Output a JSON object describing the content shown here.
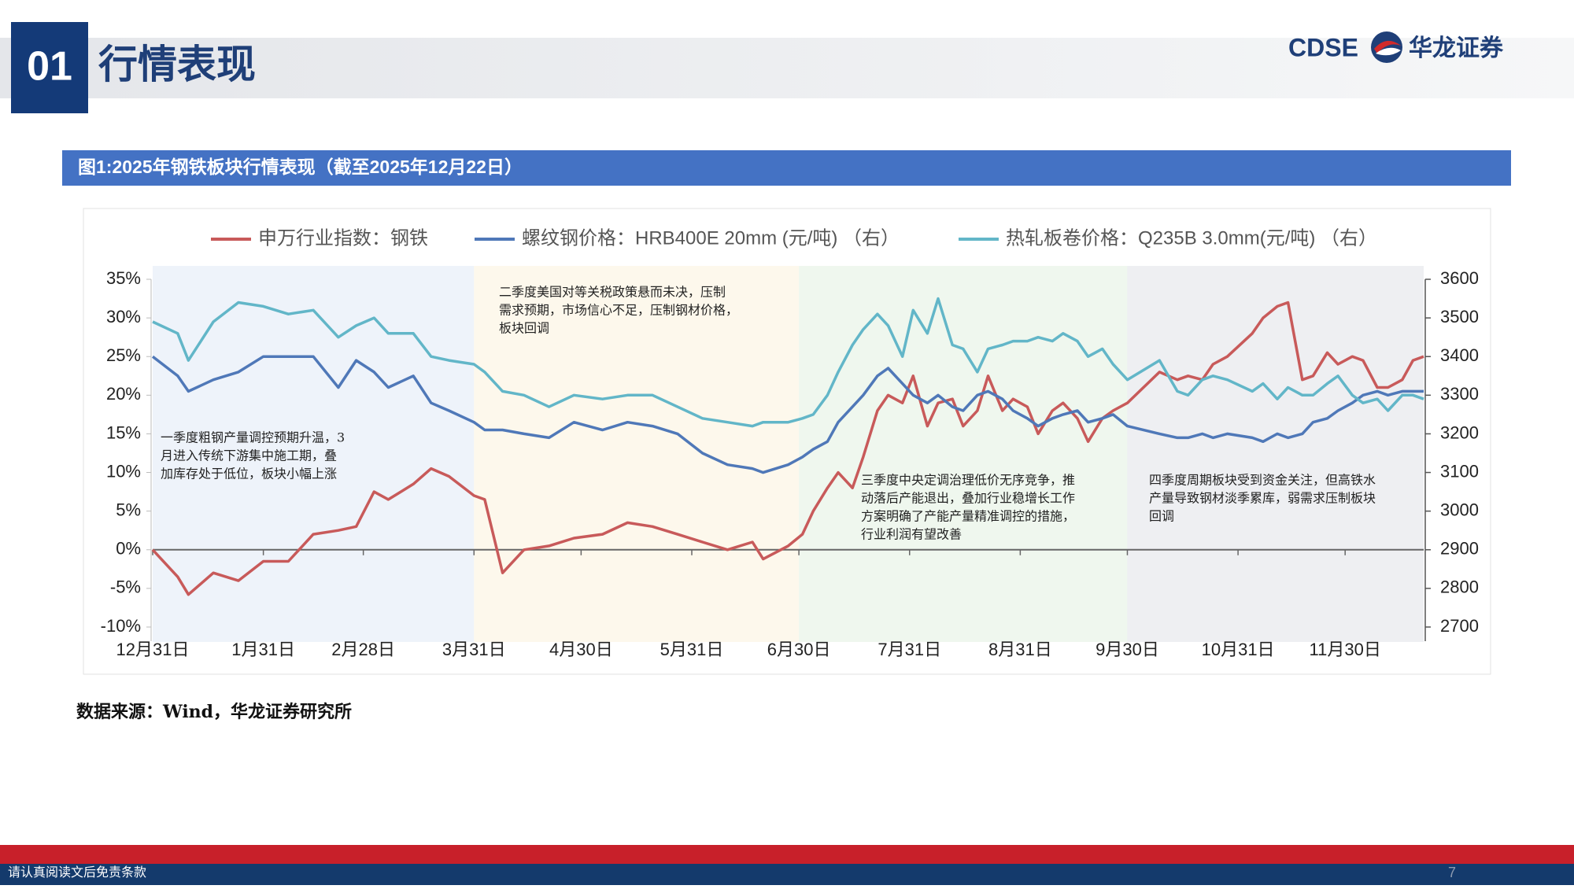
{
  "header": {
    "number": "01",
    "title": "行情表现"
  },
  "logo": {
    "latin": "CDSE",
    "name": "华龙证券"
  },
  "figure_title": "图1:2025年钢铁板块行情表现（截至2025年12月22日）",
  "source": "数据来源：Wind，华龙证券研究所",
  "footer": {
    "disclaimer": "请认真阅读文后免责条款",
    "page": "7"
  },
  "chart_data": {
    "type": "line",
    "x": [
      "12月31日",
      "1月7日",
      "1月10日",
      "1月17日",
      "1月24日",
      "1月31日",
      "2月7日",
      "2月14日",
      "2月21日",
      "2月26日",
      "3月3日",
      "3月7日",
      "3月14日",
      "3月19日",
      "3月24日",
      "3月31日",
      "4月3日",
      "4月8日",
      "4月14日",
      "4月21日",
      "4月28日",
      "5月6日",
      "5月13日",
      "5月20日",
      "5月27日",
      "6月3日",
      "6月10日",
      "6月17日",
      "6月20日",
      "6月27日",
      "7月1日",
      "7月4日",
      "7月8日",
      "7月11日",
      "7月15日",
      "7月18日",
      "7月22日",
      "7月25日",
      "7月29日",
      "8月1日",
      "8月5日",
      "8月8日",
      "8月12日",
      "8月15日",
      "8月19日",
      "8月22日",
      "8月26日",
      "8月29日",
      "9月2日",
      "9月5日",
      "9月9日",
      "9月12日",
      "9月16日",
      "9月19日",
      "9月23日",
      "9月26日",
      "9月30日",
      "10月9日",
      "10月14日",
      "10月17日",
      "10月21日",
      "10月24日",
      "10月28日",
      "11月4日",
      "11月7日",
      "11月11日",
      "11月14日",
      "11月18日",
      "11月21日",
      "11月25日",
      "11月28日",
      "12月2日",
      "12月5日",
      "12月9日",
      "12月12日",
      "12月16日",
      "12月19日",
      "12月22日"
    ],
    "xlim": [
      "12月31日",
      "12月22日"
    ],
    "xticks": [
      "12月31日",
      "1月31日",
      "2月28日",
      "3月31日",
      "4月30日",
      "5月31日",
      "6月30日",
      "7月31日",
      "8月31日",
      "9月30日",
      "10月31日",
      "11月30日"
    ],
    "series": [
      {
        "name": "申万行业指数：钢铁",
        "color": "#c85a5a",
        "values": [
          0,
          -3.5,
          -5.8,
          -3,
          -4,
          -1.5,
          -1.5,
          2,
          2.5,
          3,
          7.5,
          6.5,
          8.5,
          10.5,
          9.5,
          7,
          6.5,
          -3,
          0,
          0.5,
          1.5,
          2,
          3.5,
          3,
          2,
          1,
          0,
          1,
          -1.2,
          0.5,
          2,
          5,
          8,
          10,
          8,
          12,
          18,
          20,
          19,
          22.5,
          16,
          19,
          19.5,
          16,
          18,
          22.5,
          18,
          19.5,
          18.5,
          15,
          18,
          19,
          17,
          14,
          17,
          18,
          19,
          23,
          22,
          22.5,
          22,
          24,
          25,
          28,
          30,
          31.5,
          32,
          22,
          22.5,
          25.5,
          24,
          25,
          24.5,
          21,
          21,
          22,
          24.5,
          25
        ]
      },
      {
        "name": "螺纹钢价格：HRB400E 20mm (元/吨) （右）",
        "color": "#4f78b8",
        "axis": "y2",
        "values": [
          3400,
          3350,
          3310,
          3340,
          3360,
          3400,
          3400,
          3400,
          3320,
          3390,
          3360,
          3320,
          3350,
          3280,
          3260,
          3230,
          3210,
          3210,
          3200,
          3190,
          3230,
          3210,
          3230,
          3220,
          3200,
          3150,
          3120,
          3110,
          3100,
          3120,
          3140,
          3160,
          3180,
          3230,
          3270,
          3300,
          3350,
          3370,
          3330,
          3300,
          3280,
          3300,
          3270,
          3260,
          3300,
          3310,
          3290,
          3260,
          3240,
          3220,
          3240,
          3250,
          3260,
          3230,
          3240,
          3250,
          3220,
          3200,
          3190,
          3190,
          3200,
          3190,
          3200,
          3190,
          3180,
          3200,
          3190,
          3200,
          3230,
          3240,
          3260,
          3280,
          3300,
          3310,
          3300,
          3310,
          3310,
          3310
        ]
      },
      {
        "name": "热轧板卷价格：Q235B 3.0mm(元/吨) （右）",
        "color": "#62b6c8",
        "axis": "y2",
        "values": [
          3490,
          3460,
          3390,
          3490,
          3540,
          3530,
          3510,
          3520,
          3450,
          3480,
          3500,
          3460,
          3460,
          3400,
          3390,
          3380,
          3360,
          3310,
          3300,
          3270,
          3300,
          3290,
          3300,
          3300,
          3270,
          3240,
          3230,
          3220,
          3230,
          3230,
          3240,
          3250,
          3300,
          3360,
          3430,
          3470,
          3510,
          3480,
          3400,
          3520,
          3460,
          3550,
          3430,
          3420,
          3360,
          3420,
          3430,
          3440,
          3440,
          3450,
          3440,
          3460,
          3440,
          3400,
          3420,
          3380,
          3340,
          3390,
          3310,
          3300,
          3340,
          3350,
          3340,
          3310,
          3330,
          3290,
          3320,
          3300,
          3300,
          3330,
          3350,
          3300,
          3280,
          3290,
          3260,
          3300,
          3300,
          3290
        ]
      }
    ],
    "ylim": [
      -10,
      35
    ],
    "yticks": [
      {
        "value": -10,
        "label": "-10%"
      },
      {
        "value": -5,
        "label": "-5%"
      },
      {
        "value": 0,
        "label": "0%"
      },
      {
        "value": 5,
        "label": "5%"
      },
      {
        "value": 10,
        "label": "10%"
      },
      {
        "value": 15,
        "label": "15%"
      },
      {
        "value": 20,
        "label": "20%"
      },
      {
        "value": 25,
        "label": "25%"
      },
      {
        "value": 30,
        "label": "30%"
      },
      {
        "value": 35,
        "label": "35%"
      }
    ],
    "y2lim": [
      2700,
      3600
    ],
    "y2ticks": [
      2700,
      2800,
      2900,
      3000,
      3100,
      3200,
      3300,
      3400,
      3500,
      3600
    ],
    "legend": "top",
    "annotations": [
      [
        "一季度粗钢产量调控预期升温，3",
        "月进入传统下游集中施工期，叠",
        "加库存处于低位，板块小幅上涨"
      ],
      [
        "二季度美国对等关税政策悬而未决，压制",
        "需求预期，市场信心不足，压制钢材价格，",
        "板块回调"
      ],
      [
        "三季度中央定调治理低价无序竞争，推",
        "动落后产能退出，叠加行业稳增长工作",
        "方案明确了产能产量精准调控的措施，",
        "行业利润有望改善"
      ],
      [
        "四季度周期板块受到资金关注，但高铁水",
        "产量导致钢材淡季累库，弱需求压制板块",
        "回调"
      ]
    ]
  }
}
